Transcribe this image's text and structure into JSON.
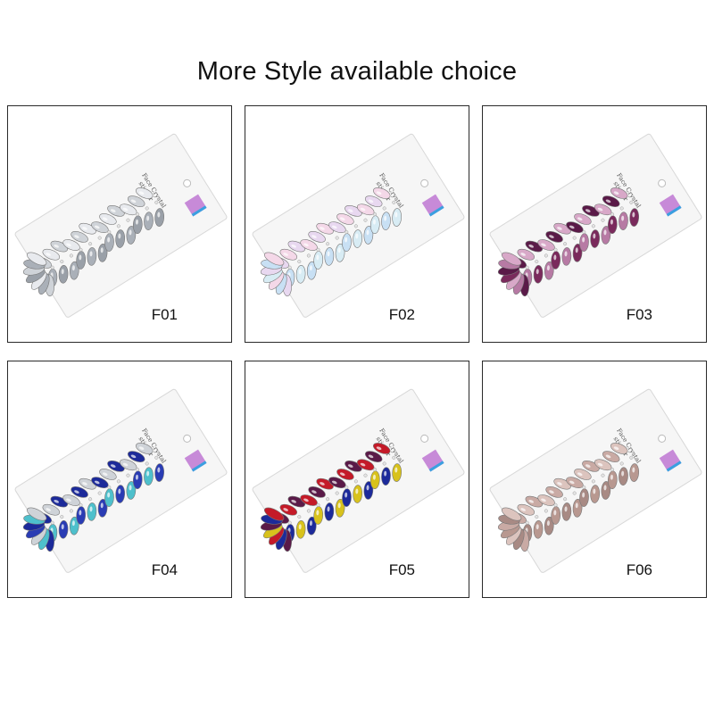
{
  "heading": "More Style available choice",
  "package_label": [
    "Face Crystal",
    "sticker"
  ],
  "products": [
    {
      "code": "F01",
      "colors": [
        "#cfd3d8",
        "#aab0b8",
        "#e8eaee",
        "#9aa0a8"
      ]
    },
    {
      "code": "F02",
      "colors": [
        "#e8d8f0",
        "#c8e0f4",
        "#f4d8e8",
        "#d8ecf4"
      ]
    },
    {
      "code": "F03",
      "colors": [
        "#5a1a48",
        "#b77aa4",
        "#d8a8c8",
        "#7a2a5c"
      ]
    },
    {
      "code": "F04",
      "colors": [
        "#1c2a9a",
        "#4ec0cc",
        "#cfd3d8",
        "#2a3cb4"
      ]
    },
    {
      "code": "F05",
      "colors": [
        "#5a1a48",
        "#1c2a9a",
        "#c41a28",
        "#d8c21c"
      ]
    },
    {
      "code": "F06",
      "colors": [
        "#c9aaa4",
        "#a88a84",
        "#dcc4be",
        "#b89890"
      ]
    }
  ]
}
